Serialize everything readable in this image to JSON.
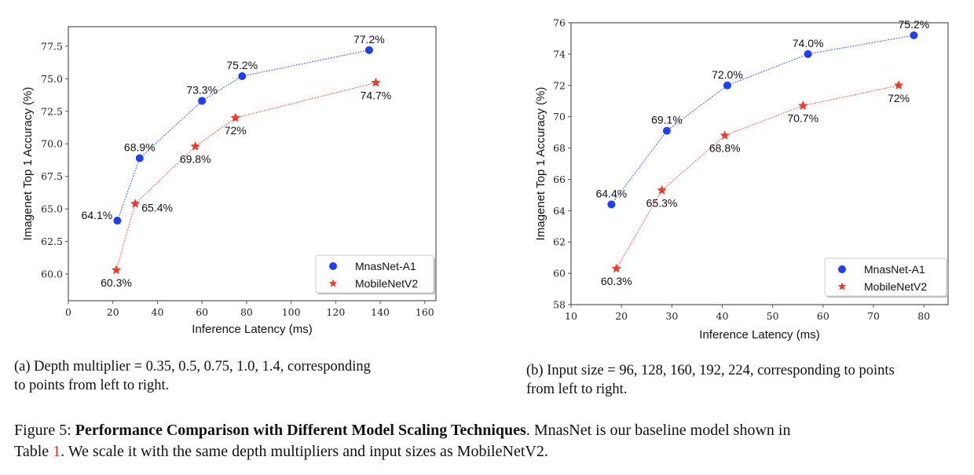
{
  "chart_data": [
    {
      "id": "a",
      "type": "line",
      "title": "",
      "xlabel": "Inference Latency (ms)",
      "ylabel": "Imagenet Top 1 Accuracy (%)",
      "xlim": [
        0,
        165
      ],
      "ylim": [
        57.95,
        79.0
      ],
      "xticks": [
        0,
        20,
        40,
        60,
        80,
        100,
        120,
        140,
        160
      ],
      "xtick_labels": [
        "0",
        "20",
        "40",
        "60",
        "80",
        "100",
        "120",
        "140",
        "160"
      ],
      "yticks": [
        60.0,
        62.5,
        65.0,
        67.5,
        70.0,
        72.5,
        75.0,
        77.5
      ],
      "ytick_labels": [
        "60.0",
        "62.5",
        "65.0",
        "67.5",
        "70.0",
        "72.5",
        "75.0",
        "77.5"
      ],
      "grid": false,
      "legend_position": "bottom-right",
      "series": [
        {
          "name": "MnasNet-A1",
          "color": "#1f3ff5",
          "marker": "circle",
          "line_style": "dotted",
          "x": [
            22,
            32,
            60,
            78,
            135
          ],
          "y": [
            64.1,
            68.9,
            73.3,
            75.2,
            77.2
          ],
          "labels": [
            "64.1%",
            "68.9%",
            "73.3%",
            "75.2%",
            "77.2%"
          ],
          "label_pos": [
            "left",
            "above",
            "above",
            "above",
            "above"
          ]
        },
        {
          "name": "MobileNetV2",
          "color": "#ee3b2b",
          "marker": "star",
          "line_style": "dotted",
          "x": [
            21.5,
            30,
            57,
            75,
            138
          ],
          "y": [
            60.3,
            65.4,
            69.8,
            72.0,
            74.7
          ],
          "labels": [
            "60.3%",
            "65.4%",
            "69.8%",
            "72%",
            "74.7%"
          ],
          "label_pos": [
            "below",
            "right",
            "below",
            "below",
            "below"
          ]
        }
      ]
    },
    {
      "id": "b",
      "type": "line",
      "title": "",
      "xlabel": "Inference Latency (ms)",
      "ylabel": "Imagenet Top 1 Accuracy (%)",
      "xlim": [
        10,
        84.8
      ],
      "ylim": [
        58,
        76
      ],
      "xticks": [
        10,
        20,
        30,
        40,
        50,
        60,
        70,
        80
      ],
      "xtick_labels": [
        "10",
        "20",
        "30",
        "40",
        "50",
        "60",
        "70",
        "80"
      ],
      "yticks": [
        58,
        60,
        62,
        64,
        66,
        68,
        70,
        72,
        74,
        76
      ],
      "ytick_labels": [
        "58",
        "60",
        "62",
        "64",
        "66",
        "68",
        "70",
        "72",
        "74",
        "76"
      ],
      "grid": false,
      "legend_position": "bottom-right",
      "series": [
        {
          "name": "MnasNet-A1",
          "color": "#1f3ff5",
          "marker": "circle",
          "line_style": "dotted",
          "x": [
            18,
            29,
            41,
            57,
            78
          ],
          "y": [
            64.4,
            69.1,
            72.0,
            74.0,
            75.2
          ],
          "labels": [
            "64.4%",
            "69.1%",
            "72.0%",
            "74.0%",
            "75.2%"
          ],
          "label_pos": [
            "above",
            "above",
            "above",
            "above",
            "above"
          ]
        },
        {
          "name": "MobileNetV2",
          "color": "#ee3b2b",
          "marker": "star",
          "line_style": "dotted",
          "x": [
            19,
            28,
            40.5,
            56,
            75
          ],
          "y": [
            60.3,
            65.3,
            68.8,
            70.7,
            72.0
          ],
          "labels": [
            "60.3%",
            "65.3%",
            "68.8%",
            "70.7%",
            "72%"
          ],
          "label_pos": [
            "below",
            "below",
            "below",
            "below",
            "below"
          ]
        }
      ]
    }
  ],
  "captions": {
    "a_line1": "(a) Depth multiplier = 0.35, 0.5, 0.75, 1.0, 1.4, corresponding",
    "a_line2": "to points from left to right.",
    "b_line1": "(b) Input size = 96, 128, 160, 192, 224, corresponding to points",
    "b_line2": "from left to right."
  },
  "figure_caption": {
    "prefix": "Figure 5: ",
    "bold": "Performance Comparison with Different Model Scaling Techniques",
    "rest1": ". MnasNet is our baseline model shown in",
    "line2_pre": "Table ",
    "ref": "1",
    "line2_post": ". We scale it with the same depth multipliers and input sizes as MobileNetV2."
  }
}
